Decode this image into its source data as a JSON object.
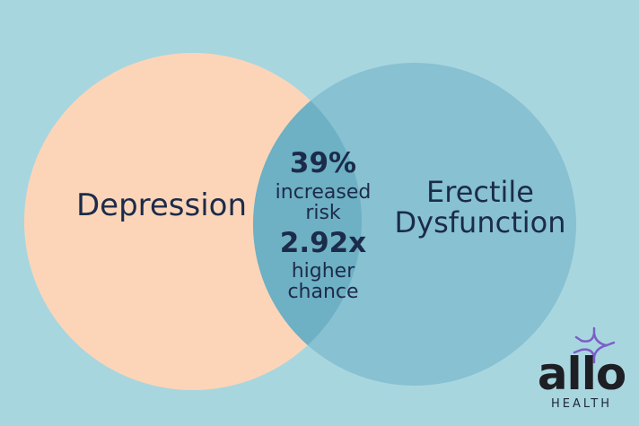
{
  "left_set": {
    "label": "Depression",
    "color": "#fcd5b8"
  },
  "right_set": {
    "label_line1": "Erectile",
    "label_line2": "Dysfunction",
    "color": "#87c1d2"
  },
  "overlap": {
    "color": "#6eb0c4",
    "stat1": "39%",
    "stat1_line1": "increased",
    "stat1_line2": "risk",
    "stat2": "2.92x",
    "stat2_line1": "higher",
    "stat2_line2": "chance"
  },
  "background_color": "#a8d6df",
  "logo": {
    "name": "allo",
    "sub": "HEALTH",
    "accent": "#7b5fc7"
  }
}
